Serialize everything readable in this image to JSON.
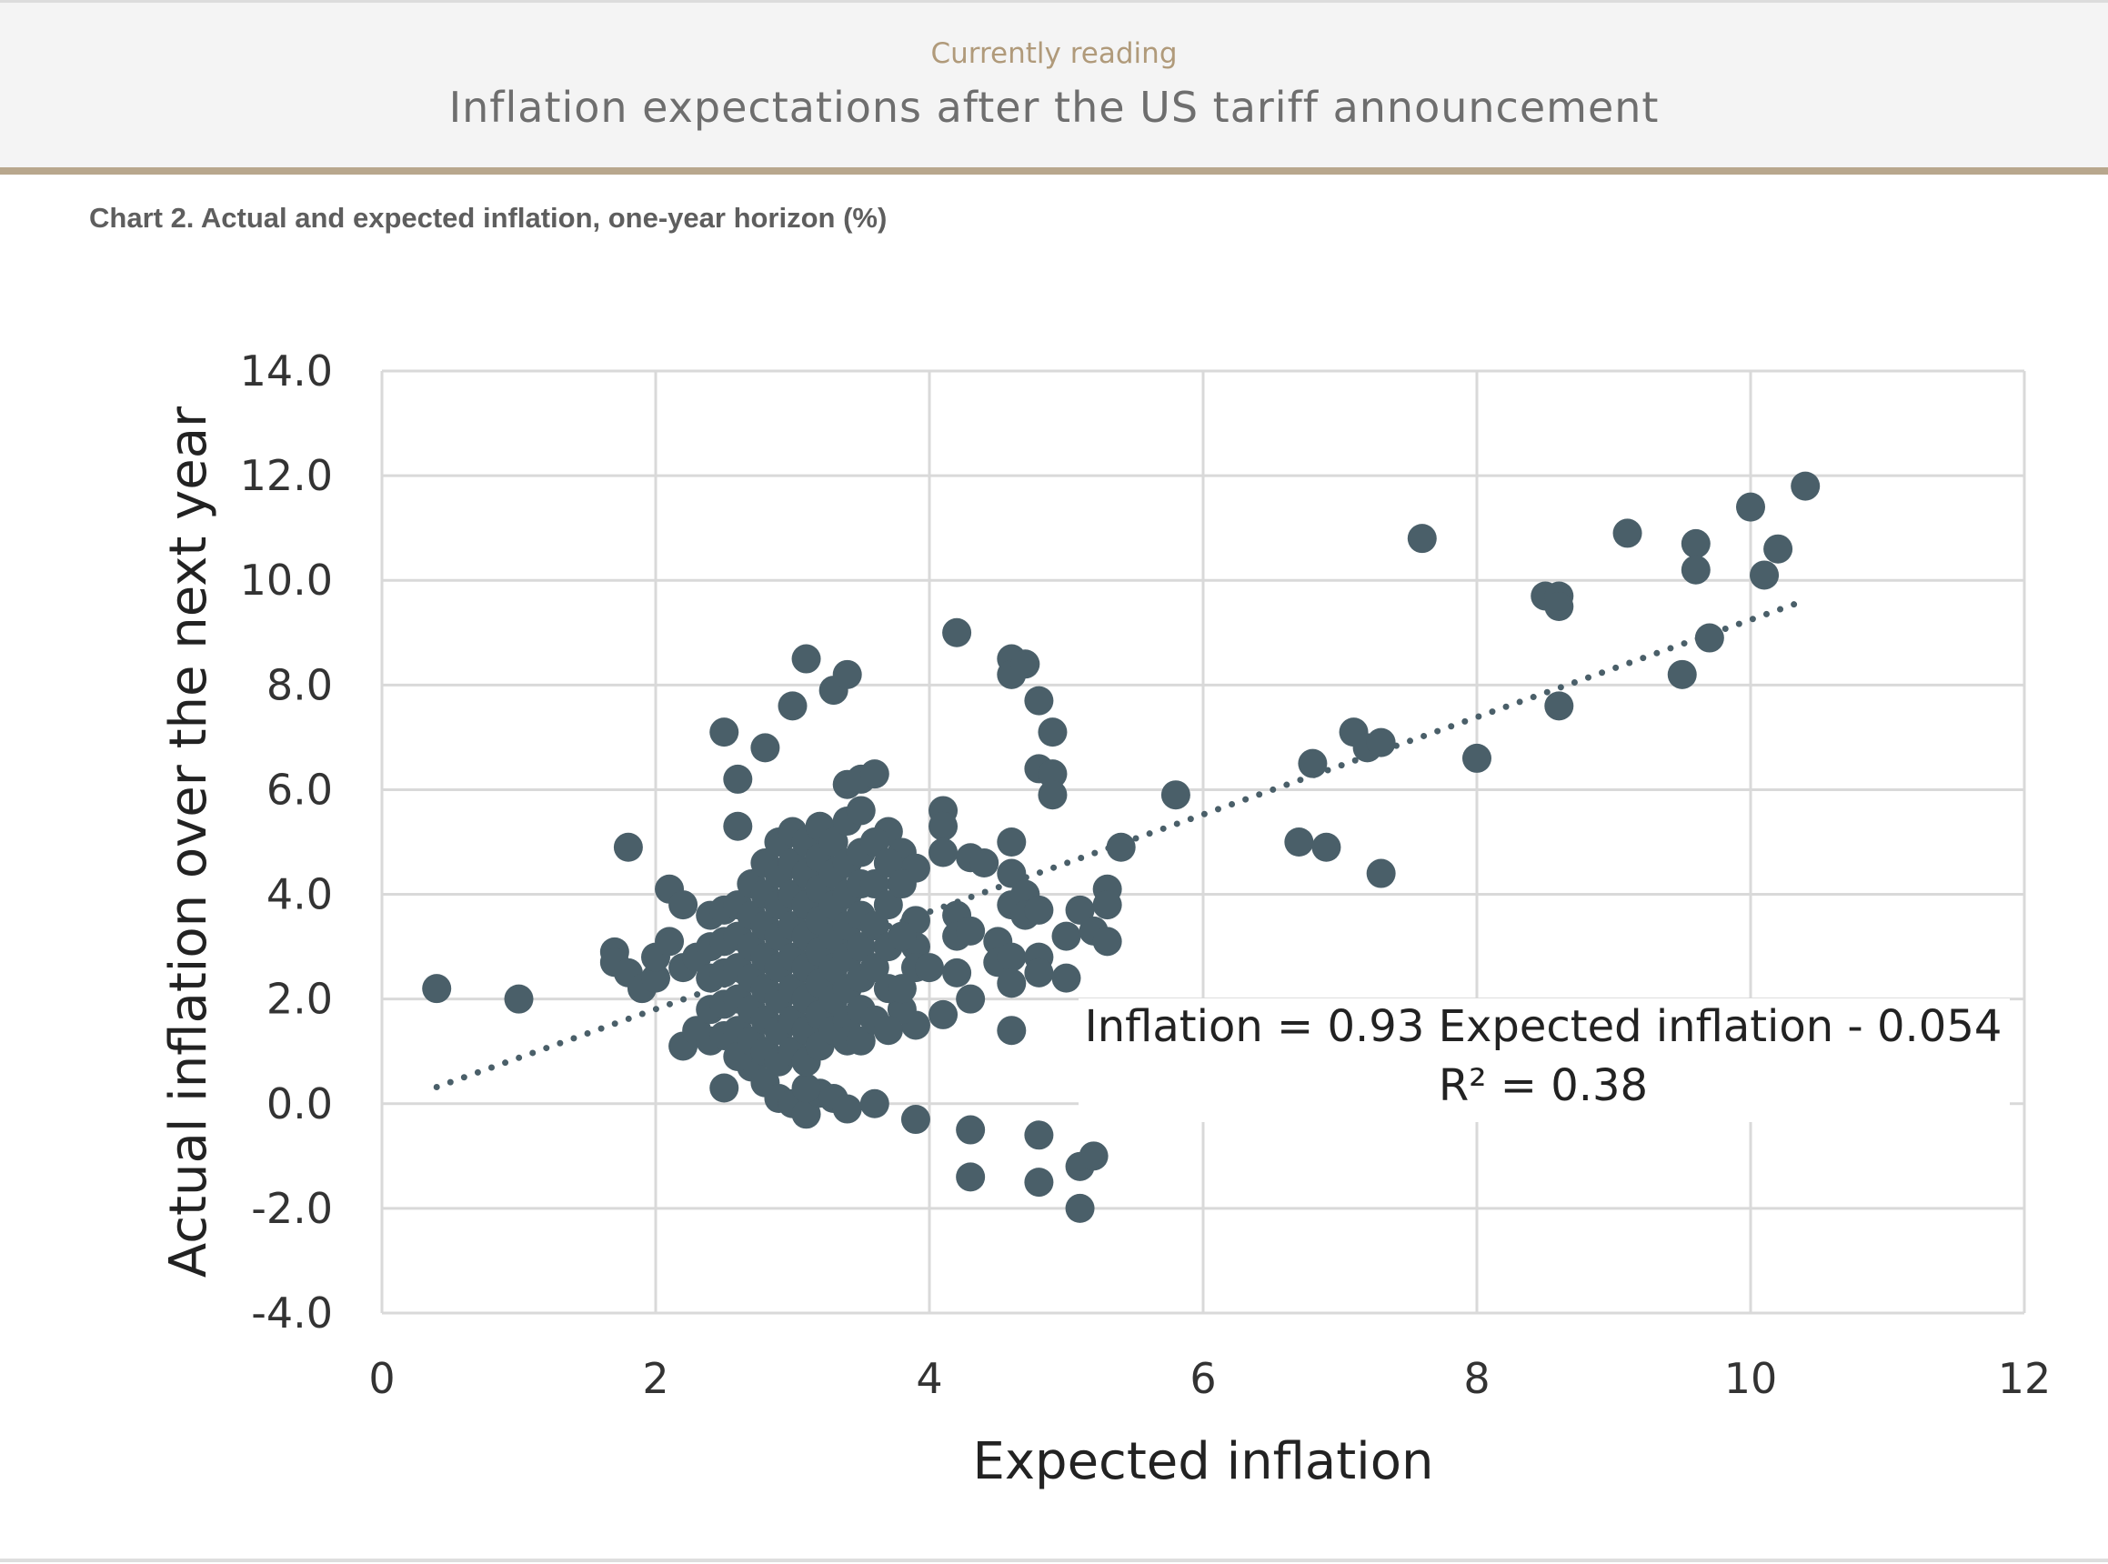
{
  "header": {
    "kicker": "Currently reading",
    "title": "Inflation expectations after the US tariff announcement"
  },
  "chart_caption": "Chart 2. Actual and expected inflation, one-year horizon (%)",
  "colors": {
    "points": "#4a5f69",
    "trendline": "#4a5f69",
    "grid": "#d9d9d9",
    "header_accent": "#b8a78d"
  },
  "chart_data": {
    "type": "scatter",
    "xlabel": "Expected inflation",
    "ylabel": "Actual inflation over the next year",
    "xlim": [
      0,
      12
    ],
    "ylim": [
      -4,
      14
    ],
    "x_ticks": [
      "0",
      "2",
      "4",
      "6",
      "8",
      "10",
      "12"
    ],
    "y_ticks": [
      "14.0",
      "12.0",
      "10.0",
      "8.0",
      "6.0",
      "4.0",
      "2.0",
      "0.0",
      "-2.0",
      "-4.0"
    ],
    "grid": true,
    "trendline": {
      "style": "dotted",
      "slope": 0.93,
      "intercept": -0.054,
      "x_range": [
        0.4,
        10.4
      ],
      "equation": "Inflation = 0.93 Expected inflation - 0.054",
      "r_squared": "R² = 0.38"
    },
    "points": [
      [
        0.4,
        2.2
      ],
      [
        1.0,
        2.0
      ],
      [
        1.7,
        2.9
      ],
      [
        1.7,
        2.7
      ],
      [
        1.8,
        2.5
      ],
      [
        1.8,
        4.9
      ],
      [
        1.9,
        2.2
      ],
      [
        2.0,
        2.4
      ],
      [
        2.0,
        2.8
      ],
      [
        2.1,
        3.1
      ],
      [
        2.1,
        4.1
      ],
      [
        2.2,
        3.8
      ],
      [
        2.2,
        2.6
      ],
      [
        2.2,
        1.1
      ],
      [
        2.3,
        2.8
      ],
      [
        2.3,
        1.4
      ],
      [
        2.5,
        7.1
      ],
      [
        2.5,
        0.3
      ],
      [
        2.6,
        6.2
      ],
      [
        2.6,
        5.3
      ],
      [
        2.8,
        6.8
      ],
      [
        3.0,
        7.6
      ],
      [
        3.1,
        8.5
      ],
      [
        3.3,
        7.9
      ],
      [
        3.4,
        8.2
      ],
      [
        3.4,
        6.1
      ],
      [
        3.5,
        6.2
      ],
      [
        3.6,
        6.3
      ],
      [
        3.7,
        5.2
      ],
      [
        3.8,
        4.8
      ],
      [
        3.9,
        4.5
      ],
      [
        3.9,
        3.5
      ],
      [
        3.9,
        3.0
      ],
      [
        3.9,
        2.6
      ],
      [
        3.9,
        1.5
      ],
      [
        3.8,
        1.8
      ],
      [
        4.0,
        2.6
      ],
      [
        4.1,
        5.6
      ],
      [
        4.1,
        5.3
      ],
      [
        4.1,
        4.8
      ],
      [
        4.1,
        1.7
      ],
      [
        4.2,
        9.0
      ],
      [
        4.2,
        3.6
      ],
      [
        4.2,
        3.2
      ],
      [
        4.2,
        2.5
      ],
      [
        4.3,
        4.7
      ],
      [
        4.3,
        3.3
      ],
      [
        4.3,
        2.0
      ],
      [
        4.3,
        -0.5
      ],
      [
        4.3,
        -1.4
      ],
      [
        4.4,
        4.6
      ],
      [
        4.5,
        3.1
      ],
      [
        4.5,
        2.7
      ],
      [
        4.6,
        8.5
      ],
      [
        4.6,
        8.2
      ],
      [
        4.6,
        5.0
      ],
      [
        4.6,
        4.4
      ],
      [
        4.6,
        3.8
      ],
      [
        4.6,
        2.8
      ],
      [
        4.6,
        2.3
      ],
      [
        4.6,
        1.4
      ],
      [
        4.7,
        8.4
      ],
      [
        4.7,
        4.0
      ],
      [
        4.7,
        3.6
      ],
      [
        4.8,
        7.7
      ],
      [
        4.8,
        6.4
      ],
      [
        4.8,
        3.7
      ],
      [
        4.8,
        2.8
      ],
      [
        4.8,
        2.5
      ],
      [
        4.8,
        -0.6
      ],
      [
        4.8,
        -1.5
      ],
      [
        4.9,
        7.1
      ],
      [
        4.9,
        6.3
      ],
      [
        4.9,
        5.9
      ],
      [
        5.0,
        3.2
      ],
      [
        5.0,
        2.4
      ],
      [
        5.1,
        3.7
      ],
      [
        5.1,
        -1.2
      ],
      [
        5.1,
        -2.0
      ],
      [
        5.2,
        3.3
      ],
      [
        5.2,
        -1.0
      ],
      [
        5.3,
        4.1
      ],
      [
        5.3,
        3.8
      ],
      [
        5.3,
        3.1
      ],
      [
        5.4,
        4.9
      ],
      [
        5.8,
        5.9
      ],
      [
        6.7,
        5.0
      ],
      [
        6.8,
        6.5
      ],
      [
        6.9,
        4.9
      ],
      [
        7.1,
        7.1
      ],
      [
        7.2,
        6.8
      ],
      [
        7.3,
        6.9
      ],
      [
        7.3,
        4.4
      ],
      [
        7.6,
        10.8
      ],
      [
        8.0,
        6.6
      ],
      [
        8.5,
        9.7
      ],
      [
        8.6,
        9.7
      ],
      [
        8.6,
        9.5
      ],
      [
        8.6,
        7.6
      ],
      [
        9.1,
        10.9
      ],
      [
        9.5,
        8.2
      ],
      [
        9.6,
        10.7
      ],
      [
        9.6,
        10.2
      ],
      [
        9.7,
        8.9
      ],
      [
        10.0,
        11.4
      ],
      [
        10.1,
        10.1
      ],
      [
        10.2,
        10.6
      ],
      [
        10.4,
        11.8
      ],
      [
        2.7,
        0.7
      ],
      [
        2.8,
        0.4
      ],
      [
        2.9,
        0.1
      ],
      [
        3.0,
        0.0
      ],
      [
        3.1,
        -0.2
      ],
      [
        3.2,
        0.2
      ],
      [
        3.3,
        0.1
      ],
      [
        3.4,
        -0.1
      ],
      [
        3.6,
        0.0
      ],
      [
        3.9,
        -0.3
      ],
      [
        3.1,
        0.3
      ],
      [
        2.4,
        3.6
      ],
      [
        2.4,
        3.0
      ],
      [
        2.4,
        2.4
      ],
      [
        2.4,
        1.8
      ],
      [
        2.4,
        1.2
      ],
      [
        2.5,
        3.7
      ],
      [
        2.5,
        3.1
      ],
      [
        2.5,
        2.5
      ],
      [
        2.5,
        1.9
      ],
      [
        2.5,
        1.3
      ],
      [
        2.6,
        3.8
      ],
      [
        2.6,
        3.2
      ],
      [
        2.6,
        2.6
      ],
      [
        2.6,
        2.0
      ],
      [
        2.6,
        1.4
      ],
      [
        2.6,
        0.9
      ],
      [
        2.7,
        4.2
      ],
      [
        2.7,
        3.6
      ],
      [
        2.7,
        3.0
      ],
      [
        2.7,
        2.4
      ],
      [
        2.7,
        1.8
      ],
      [
        2.7,
        1.2
      ],
      [
        2.8,
        4.6
      ],
      [
        2.8,
        4.0
      ],
      [
        2.8,
        3.4
      ],
      [
        2.8,
        2.8
      ],
      [
        2.8,
        2.2
      ],
      [
        2.8,
        1.6
      ],
      [
        2.8,
        1.0
      ],
      [
        2.9,
        5.0
      ],
      [
        2.9,
        4.4
      ],
      [
        2.9,
        3.8
      ],
      [
        2.9,
        3.2
      ],
      [
        2.9,
        2.6
      ],
      [
        2.9,
        2.0
      ],
      [
        2.9,
        1.4
      ],
      [
        2.9,
        0.8
      ],
      [
        3.0,
        5.2
      ],
      [
        3.0,
        4.6
      ],
      [
        3.0,
        4.0
      ],
      [
        3.0,
        3.4
      ],
      [
        3.0,
        2.8
      ],
      [
        3.0,
        2.2
      ],
      [
        3.0,
        1.6
      ],
      [
        3.0,
        1.0
      ],
      [
        3.1,
        5.0
      ],
      [
        3.1,
        4.4
      ],
      [
        3.1,
        3.8
      ],
      [
        3.1,
        3.2
      ],
      [
        3.1,
        2.6
      ],
      [
        3.1,
        2.0
      ],
      [
        3.1,
        1.4
      ],
      [
        3.1,
        0.8
      ],
      [
        3.2,
        5.3
      ],
      [
        3.2,
        4.7
      ],
      [
        3.2,
        4.1
      ],
      [
        3.2,
        3.5
      ],
      [
        3.2,
        2.9
      ],
      [
        3.2,
        2.3
      ],
      [
        3.2,
        1.7
      ],
      [
        3.2,
        1.1
      ],
      [
        3.3,
        5.0
      ],
      [
        3.3,
        4.4
      ],
      [
        3.3,
        3.8
      ],
      [
        3.3,
        3.2
      ],
      [
        3.3,
        2.6
      ],
      [
        3.3,
        2.0
      ],
      [
        3.3,
        1.4
      ],
      [
        3.4,
        5.4
      ],
      [
        3.4,
        4.6
      ],
      [
        3.4,
        4.0
      ],
      [
        3.4,
        3.4
      ],
      [
        3.4,
        2.8
      ],
      [
        3.4,
        2.2
      ],
      [
        3.4,
        1.6
      ],
      [
        3.4,
        1.2
      ],
      [
        3.5,
        5.6
      ],
      [
        3.5,
        4.8
      ],
      [
        3.5,
        4.2
      ],
      [
        3.5,
        3.6
      ],
      [
        3.5,
        3.0
      ],
      [
        3.5,
        2.4
      ],
      [
        3.5,
        1.8
      ],
      [
        3.5,
        1.2
      ],
      [
        3.6,
        5.0
      ],
      [
        3.6,
        4.2
      ],
      [
        3.6,
        3.4
      ],
      [
        3.6,
        2.6
      ],
      [
        3.6,
        1.6
      ],
      [
        3.7,
        4.6
      ],
      [
        3.7,
        3.8
      ],
      [
        3.7,
        3.0
      ],
      [
        3.7,
        2.2
      ],
      [
        3.7,
        1.4
      ],
      [
        3.8,
        4.2
      ],
      [
        3.8,
        3.2
      ],
      [
        3.8,
        2.2
      ]
    ]
  }
}
